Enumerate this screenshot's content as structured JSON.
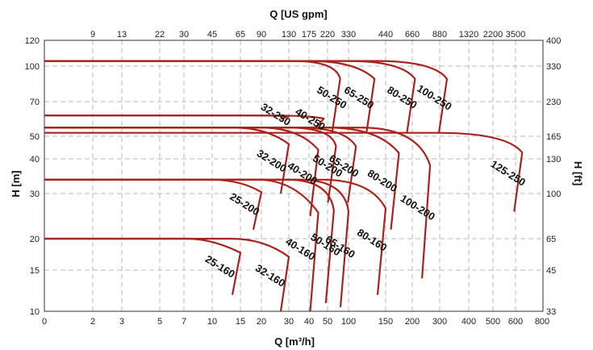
{
  "chart_data": {
    "type": "line",
    "title": "",
    "top_axis_title": "Q [US gpm]",
    "bottom_axis_title": "Q [m³/h]",
    "left_axis_title": "H [m]",
    "right_axis_title": "H [ft]",
    "bottom_ticks": [
      "0",
      "2",
      "3",
      "5",
      "7",
      "10",
      "15",
      "20",
      "30",
      "40",
      "50",
      "100",
      "150",
      "200",
      "300",
      "400",
      "500",
      "600",
      "800"
    ],
    "top_ticks": [
      "9",
      "13",
      "22",
      "30",
      "45",
      "65",
      "90",
      "130",
      "175",
      "220",
      "330",
      "440",
      "660",
      "880",
      "1320",
      "2200",
      "3500"
    ],
    "left_ticks": [
      "10",
      "15",
      "20",
      "30",
      "40",
      "50",
      "70",
      "100",
      "120"
    ],
    "right_ticks": [
      "33",
      "45",
      "65",
      "100",
      "130",
      "165",
      "230",
      "330",
      "400"
    ],
    "grid": "dashed",
    "series": [
      {
        "name": "25-160",
        "shutoff_head_m": 20,
        "bep_flow_m3h": 10,
        "max_flow_m3h": 15,
        "min_head_m": 12
      },
      {
        "name": "32-160",
        "shutoff_head_m": 20,
        "bep_flow_m3h": 21,
        "max_flow_m3h": 30,
        "min_head_m": 10
      },
      {
        "name": "40-160",
        "shutoff_head_m": 34,
        "bep_flow_m3h": 33,
        "max_flow_m3h": 45,
        "min_head_m": 10
      },
      {
        "name": "50-160",
        "shutoff_head_m": 34,
        "bep_flow_m3h": 55,
        "max_flow_m3h": 65,
        "min_head_m": 11
      },
      {
        "name": "65-160",
        "shutoff_head_m": 34,
        "bep_flow_m3h": 90,
        "max_flow_m3h": 100,
        "min_head_m": 10.5
      },
      {
        "name": "80-160",
        "shutoff_head_m": 34,
        "bep_flow_m3h": 130,
        "max_flow_m3h": 150,
        "min_head_m": 12
      },
      {
        "name": "25-200",
        "shutoff_head_m": 34,
        "bep_flow_m3h": 15,
        "max_flow_m3h": 20,
        "min_head_m": 22
      },
      {
        "name": "32-200",
        "shutoff_head_m": 55,
        "bep_flow_m3h": 22,
        "max_flow_m3h": 30,
        "min_head_m": 30
      },
      {
        "name": "40-200",
        "shutoff_head_m": 55,
        "bep_flow_m3h": 35,
        "max_flow_m3h": 45,
        "min_head_m": 25
      },
      {
        "name": "50-200",
        "shutoff_head_m": 55,
        "bep_flow_m3h": 60,
        "max_flow_m3h": 70,
        "min_head_m": 28
      },
      {
        "name": "65-200",
        "shutoff_head_m": 55,
        "bep_flow_m3h": 90,
        "max_flow_m3h": 110,
        "min_head_m": 28
      },
      {
        "name": "80-200",
        "shutoff_head_m": 55,
        "bep_flow_m3h": 140,
        "max_flow_m3h": 175,
        "min_head_m": 22
      },
      {
        "name": "100-200",
        "shutoff_head_m": 55,
        "bep_flow_m3h": 220,
        "max_flow_m3h": 265,
        "min_head_m": 14
      },
      {
        "name": "32-250",
        "shutoff_head_m": 62,
        "bep_flow_m3h": 25,
        "max_flow_m3h": 30,
        "min_head_m": 60
      },
      {
        "name": "40-250",
        "shutoff_head_m": 62,
        "bep_flow_m3h": 40,
        "max_flow_m3h": 48,
        "min_head_m": 55
      },
      {
        "name": "50-250",
        "shutoff_head_m": 104,
        "bep_flow_m3h": 70,
        "max_flow_m3h": 80,
        "min_head_m": 52
      },
      {
        "name": "65-250",
        "shutoff_head_m": 104,
        "bep_flow_m3h": 110,
        "max_flow_m3h": 135,
        "min_head_m": 52
      },
      {
        "name": "80-250",
        "shutoff_head_m": 104,
        "bep_flow_m3h": 180,
        "max_flow_m3h": 210,
        "min_head_m": 52
      },
      {
        "name": "100-250",
        "shutoff_head_m": 104,
        "bep_flow_m3h": 280,
        "max_flow_m3h": 325,
        "min_head_m": 52
      },
      {
        "name": "125-250",
        "shutoff_head_m": 52,
        "bep_flow_m3h": 560,
        "max_flow_m3h": 650,
        "min_head_m": 26
      }
    ],
    "colors": {
      "curve": "#a8231c",
      "grid": "#b8b8b8",
      "text": "#111111"
    }
  }
}
